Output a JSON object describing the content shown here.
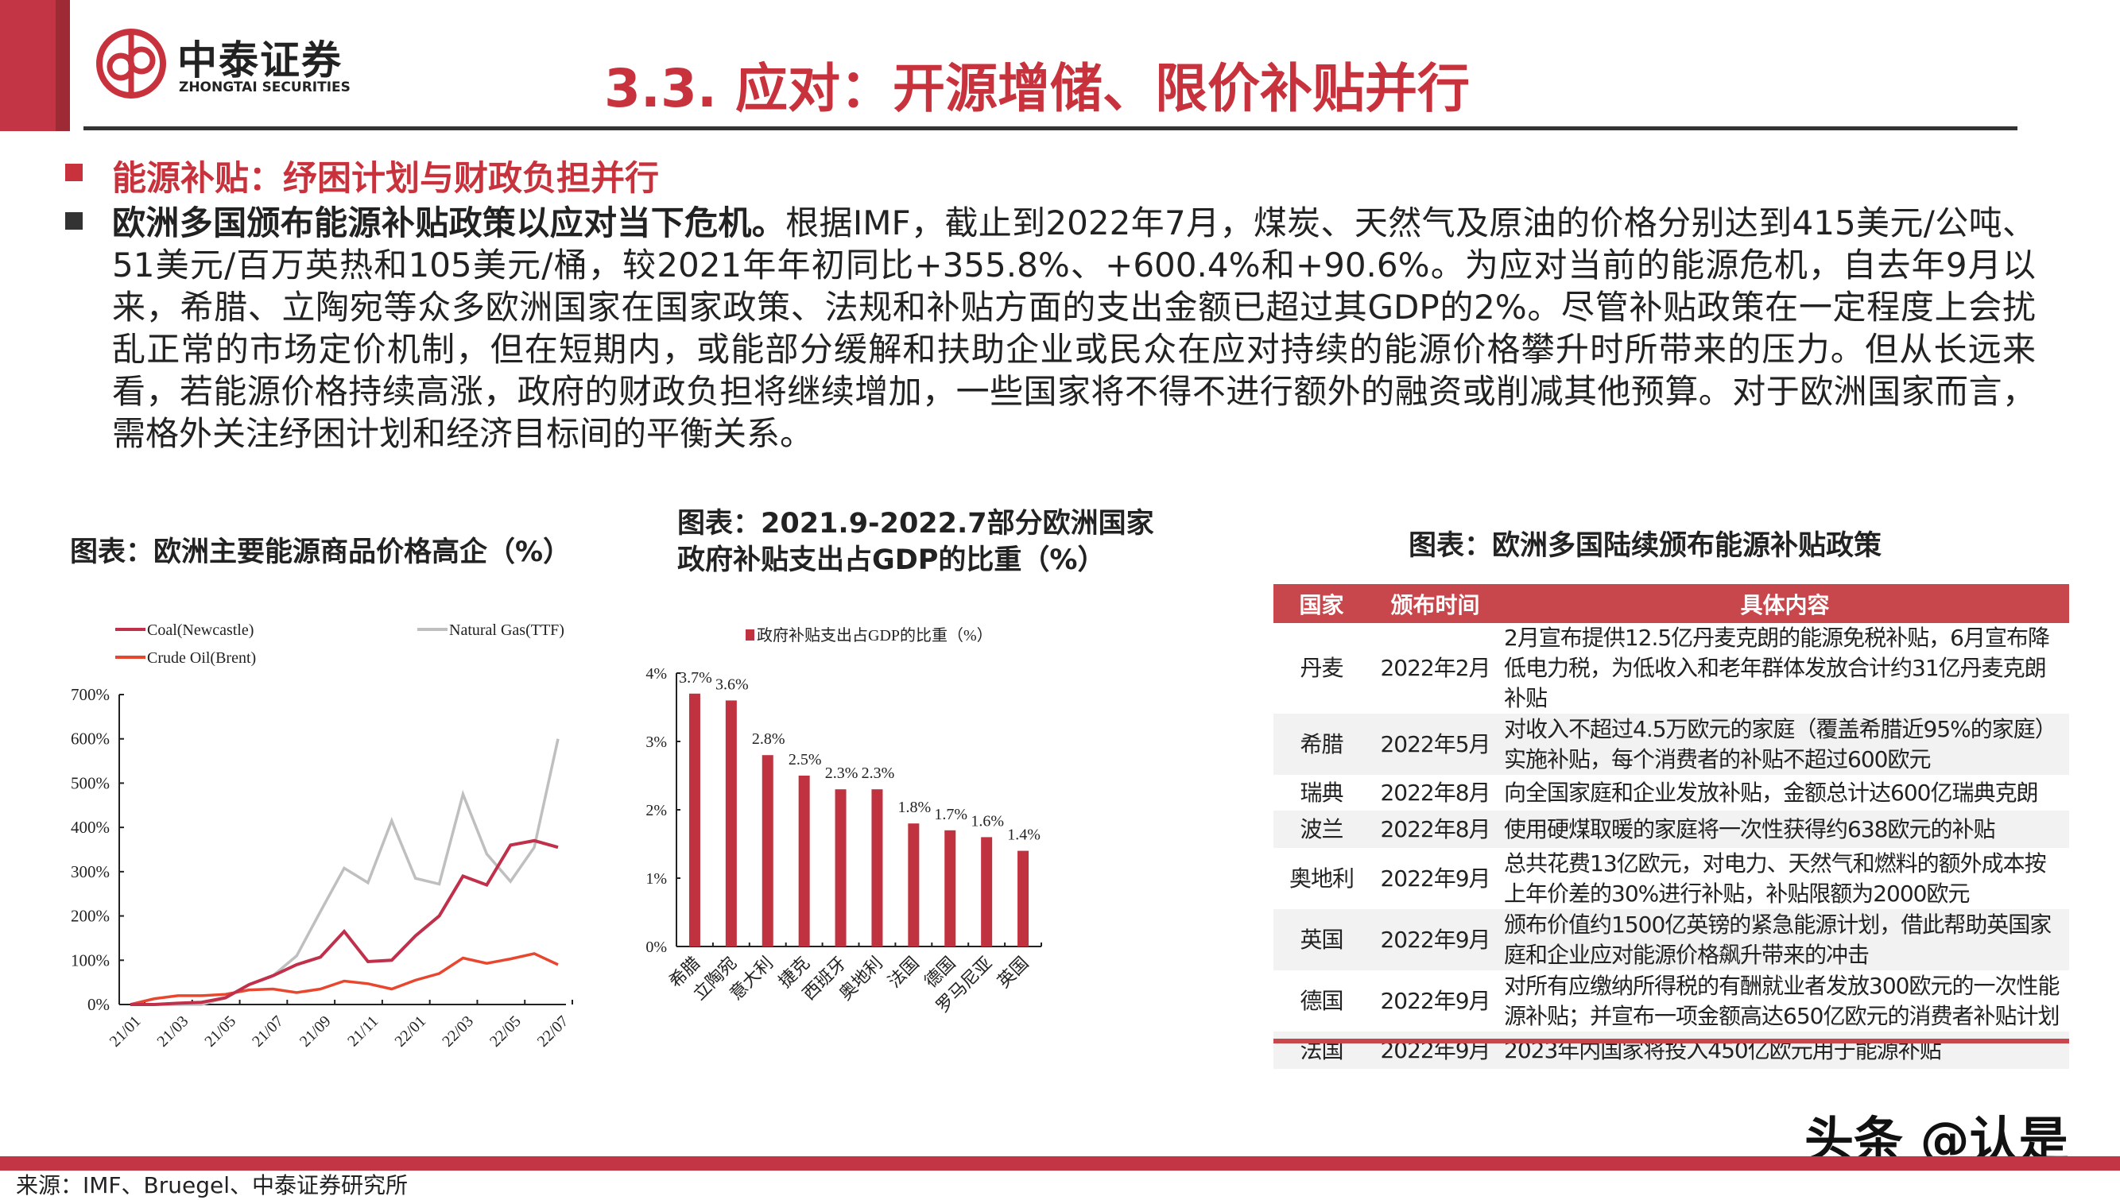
{
  "header": {
    "logo_cn": "中泰证券",
    "logo_en": "ZHONGTAI SECURITIES",
    "title": "3.3.  应对：开源增储、限价补贴并行",
    "brand_color": "#c8323c"
  },
  "subheading": "能源补贴：纾困计划与财政负担并行",
  "body": {
    "lead": "欧洲多国颁布能源补贴政策以应对当下危机。",
    "text": "根据IMF，截止到2022年7月，煤炭、天然气及原油的价格分别达到415美元/公吨、51美元/百万英热和105美元/桶，较2021年年初同比+355.8%、+600.4%和+90.6%。为应对当前的能源危机，自去年9月以来，希腊、立陶宛等众多欧洲国家在国家政策、法规和补贴方面的支出金额已超过其GDP的2%。尽管补贴政策在一定程度上会扰乱正常的市场定价机制，但在短期内，或能部分缓解和扶助企业或民众在应对持续的能源价格攀升时所带来的压力。但从长远来看，若能源价格持续高涨，政府的财政负担将继续增加，一些国家将不得不进行额外的融资或削减其他预算。对于欧洲国家而言，需格外关注纾困计划和经济目标间的平衡关系。"
  },
  "chart_titles": {
    "c1": "图表：欧洲主要能源商品价格高企（%）",
    "c2_line1": "图表：2021.9-2022.7部分欧洲国家",
    "c2_line2": "政府补贴支出占GDP的比重（%）",
    "c3": "图表：欧洲多国陆续颁布能源补贴政策"
  },
  "chart_data": [
    {
      "type": "line",
      "ylim": [
        0,
        700
      ],
      "yticks": [
        "0%",
        "100%",
        "200%",
        "300%",
        "400%",
        "500%",
        "600%",
        "700%"
      ],
      "ytick_values": [
        0,
        100,
        200,
        300,
        400,
        500,
        600,
        700
      ],
      "x": [
        "21/01",
        "21/02",
        "21/03",
        "21/04",
        "21/05",
        "21/06",
        "21/07",
        "21/08",
        "21/09",
        "21/10",
        "21/11",
        "21/12",
        "22/01",
        "22/02",
        "22/03",
        "22/04",
        "22/05",
        "22/06",
        "22/07"
      ],
      "xtick_labels": [
        "21/01",
        "21/03",
        "21/05",
        "21/07",
        "21/09",
        "21/11",
        "22/01",
        "22/03",
        "22/05",
        "22/07"
      ],
      "legend_placement": "top",
      "series": [
        {
          "name": "Coal(Newcastle)",
          "color": "#c0304a",
          "values": [
            0,
            0,
            3,
            5,
            15,
            45,
            65,
            90,
            107,
            165,
            97,
            100,
            155,
            200,
            290,
            270,
            360,
            370,
            355
          ]
        },
        {
          "name": "Natural Gas(TTF)",
          "color": "#bfbfbf",
          "values": [
            0,
            0,
            0,
            0,
            15,
            45,
            65,
            110,
            210,
            308,
            275,
            415,
            285,
            272,
            475,
            340,
            278,
            355,
            600
          ]
        },
        {
          "name": "Crude Oil(Brent)",
          "color": "#e8472f",
          "values": [
            0,
            13,
            20,
            20,
            23,
            33,
            35,
            27,
            35,
            53,
            47,
            35,
            55,
            70,
            105,
            93,
            103,
            115,
            90
          ]
        }
      ]
    },
    {
      "type": "bar",
      "legend": "政府补贴支出占GDP的比重（%）",
      "color": "#c0323f",
      "ylim": [
        0,
        4
      ],
      "yticks": [
        "0%",
        "1%",
        "2%",
        "3%",
        "4%"
      ],
      "ytick_values": [
        0,
        1,
        2,
        3,
        4
      ],
      "categories": [
        "希腊",
        "立陶宛",
        "意大利",
        "捷克",
        "西班牙",
        "奥地利",
        "法国",
        "德国",
        "罗马尼亚",
        "英国"
      ],
      "values": [
        3.7,
        3.6,
        2.8,
        2.5,
        2.3,
        2.3,
        1.8,
        1.7,
        1.6,
        1.4
      ],
      "labels": [
        "3.7%",
        "3.6%",
        "2.8%",
        "2.5%",
        "2.3%",
        "2.3%",
        "1.8%",
        "1.7%",
        "1.6%",
        "1.4%"
      ]
    }
  ],
  "table": {
    "header_color": "#c8474c",
    "columns": [
      "国家",
      "颁布时间",
      "具体内容"
    ],
    "rows": [
      [
        "丹麦",
        "2022年2月",
        "2月宣布提供12.5亿丹麦克朗的能源免税补贴，6月宣布降低电力税，为低收入和老年群体发放合计约31亿丹麦克朗补贴"
      ],
      [
        "希腊",
        "2022年5月",
        "对收入不超过4.5万欧元的家庭（覆盖希腊近95%的家庭）实施补贴，每个消费者的补贴不超过600欧元"
      ],
      [
        "瑞典",
        "2022年8月",
        "向全国家庭和企业发放补贴，金额总计达600亿瑞典克朗"
      ],
      [
        "波兰",
        "2022年8月",
        "使用硬煤取暖的家庭将一次性获得约638欧元的补贴"
      ],
      [
        "奥地利",
        "2022年9月",
        "总共花费13亿欧元，对电力、天然气和燃料的额外成本按上年价差的30%进行补贴，补贴限额为2000欧元"
      ],
      [
        "英国",
        "2022年9月",
        "颁布价值约1500亿英镑的紧急能源计划，借此帮助英国家庭和企业应对能源价格飙升带来的冲击"
      ],
      [
        "德国",
        "2022年9月",
        "对所有应缴纳所得税的有酬就业者发放300欧元的一次性能源补贴；并宣布一项金额高达650亿欧元的消费者补贴计划"
      ],
      [
        "法国",
        "2022年9月",
        "2023年内国家将投入450亿欧元用于能源补贴"
      ]
    ]
  },
  "footer": {
    "source": "来源：IMF、Bruegel、中泰证券研究所",
    "watermark": "头条 @认是"
  }
}
